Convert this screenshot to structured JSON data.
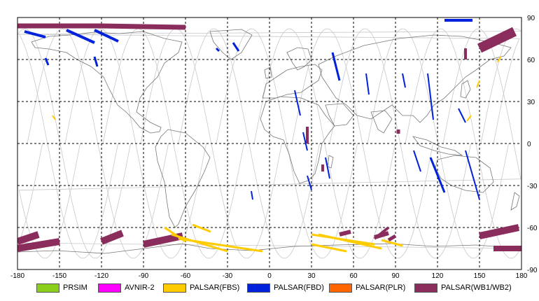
{
  "map": {
    "lon_ticks": [
      "-180",
      "-150",
      "-120",
      "-90",
      "-60",
      "-30",
      "0",
      "30",
      "60",
      "90",
      "120",
      "150",
      "180"
    ],
    "lat_ticks": [
      "90",
      "60",
      "30",
      "0",
      "-30",
      "-60",
      "-90"
    ],
    "lon_range": [
      -180,
      180
    ],
    "lat_range": [
      -90,
      90
    ],
    "grid": "dashed",
    "background_color": "#ffffff",
    "coastline_color": "#777777",
    "orbit_track_color": "#c8c8c8"
  },
  "legend": [
    {
      "label": "PRSIM",
      "color": "#8ccf1a"
    },
    {
      "label": "AVNIR-2",
      "color": "#ff00ff"
    },
    {
      "label": "PALSAR(FBS)",
      "color": "#ffcc00"
    },
    {
      "label": "PALSAR(FBD)",
      "color": "#0022dd"
    },
    {
      "label": "PALSAR(PLR)",
      "color": "#ff6600"
    },
    {
      "label": "PALSAR(WB1/WB2)",
      "color": "#8b2d5c"
    }
  ]
}
